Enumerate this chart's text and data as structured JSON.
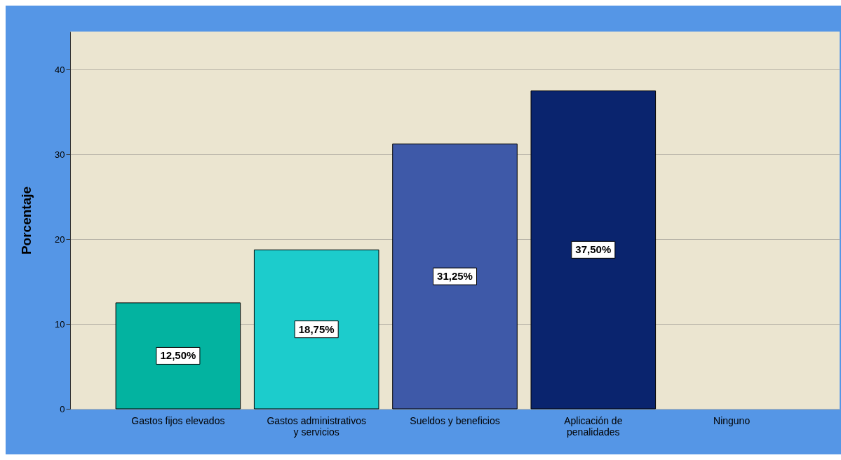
{
  "chart_data": {
    "type": "bar",
    "ylabel": "Porcentaje",
    "categories": [
      "Gastos fijos elevados",
      "Gastos administrativos y servicios",
      "Sueldos y beneficios",
      "Aplicación de penalidades",
      "Ninguno"
    ],
    "values": [
      12.5,
      18.75,
      31.25,
      37.5,
      0
    ],
    "colors": [
      "#03b3a0",
      "#1ccccc",
      "#3e59a8",
      "#0a246e",
      "#0a246e"
    ],
    "value_labels": [
      "12,50%",
      "18,75%",
      "31,25%",
      "37,50%",
      null
    ],
    "ylim": [
      0,
      44.5
    ],
    "yticks": [
      0,
      10,
      20,
      30,
      40
    ],
    "grid": "y"
  }
}
